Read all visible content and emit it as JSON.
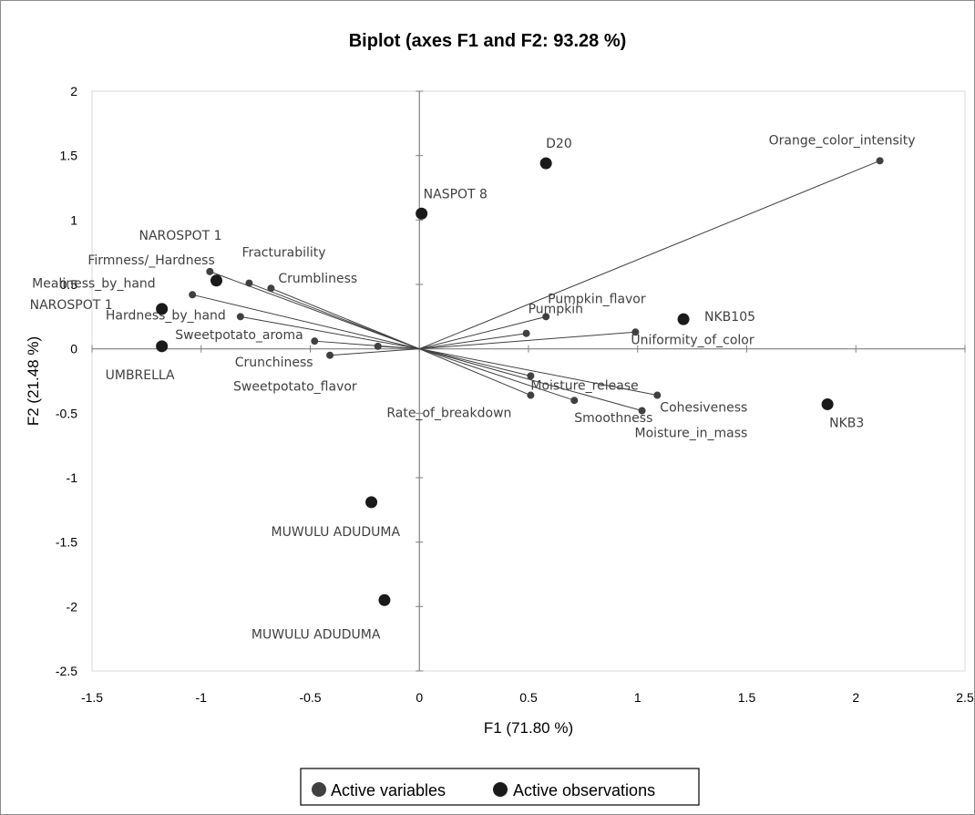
{
  "chart_data": {
    "type": "scatter",
    "title": "Biplot (axes F1 and F2: 93.28 %)",
    "xlabel": "F1 (71.80 %)",
    "ylabel": "F2 (21.48 %)",
    "xlim": [
      -1.5,
      2.5
    ],
    "ylim": [
      -2.5,
      2
    ],
    "xticks": [
      "-1.5",
      "-1",
      "-0.5",
      "0",
      "0.5",
      "1",
      "1.5",
      "2",
      "2.5"
    ],
    "yticks": [
      "-2.5",
      "-2",
      "-1.5",
      "-1",
      "-0.5",
      "0",
      "0.5",
      "1",
      "1.5",
      "2"
    ],
    "grid": false,
    "legend_position": "bottom",
    "legend": [
      {
        "label": "Active variables",
        "color": "#404040"
      },
      {
        "label": "Active observations",
        "color": "#1a1a1a"
      }
    ],
    "variables": [
      {
        "name": "Orange_color_intensity",
        "x": 2.11,
        "y": 1.46
      },
      {
        "name": "Firmness/_Hardness",
        "x": -0.96,
        "y": 0.6
      },
      {
        "name": "Fracturability",
        "x": -0.78,
        "y": 0.51
      },
      {
        "name": "Crumbliness",
        "x": -0.68,
        "y": 0.47
      },
      {
        "name": "Mealiness_by_hand",
        "x": -1.04,
        "y": 0.42
      },
      {
        "name": "Hardness_by_hand",
        "x": -0.82,
        "y": 0.25
      },
      {
        "name": "Sweetpotato_aroma",
        "x": -0.48,
        "y": 0.06
      },
      {
        "name": "Crunchiness",
        "x": -0.19,
        "y": 0.02
      },
      {
        "name": "Sweetpotato_flavor",
        "x": -0.41,
        "y": -0.05
      },
      {
        "name": "Pumpkin_flavor",
        "x": 0.58,
        "y": 0.25
      },
      {
        "name": "Pumpkin",
        "x": 0.49,
        "y": 0.12
      },
      {
        "name": "Uniformity_of_color",
        "x": 0.99,
        "y": 0.13
      },
      {
        "name": "Moisture_release",
        "x": 0.51,
        "y": -0.21
      },
      {
        "name": "Rate_of_breakdown",
        "x": 0.51,
        "y": -0.36
      },
      {
        "name": "Smoothness",
        "x": 0.71,
        "y": -0.4
      },
      {
        "name": "Cohesiveness",
        "x": 1.09,
        "y": -0.36
      },
      {
        "name": "Moisture_in_mass",
        "x": 1.02,
        "y": -0.48
      }
    ],
    "observations": [
      {
        "name": "D20",
        "x": 0.58,
        "y": 1.44
      },
      {
        "name": "NASPOT 8",
        "x": 0.01,
        "y": 1.05
      },
      {
        "name": "NAROSPOT 1",
        "x": -0.93,
        "y": 0.53
      },
      {
        "name": "NAROSPOT 1",
        "x": -1.18,
        "y": 0.31
      },
      {
        "name": "UMBRELLA",
        "x": -1.18,
        "y": 0.02
      },
      {
        "name": "NKB105",
        "x": 1.21,
        "y": 0.23
      },
      {
        "name": "NKB3",
        "x": 1.87,
        "y": -0.43
      },
      {
        "name": "MUWULU ADUDUMA",
        "x": -0.22,
        "y": -1.19
      },
      {
        "name": "MUWULU ADUDUMA",
        "x": -0.16,
        "y": -1.95
      }
    ]
  }
}
